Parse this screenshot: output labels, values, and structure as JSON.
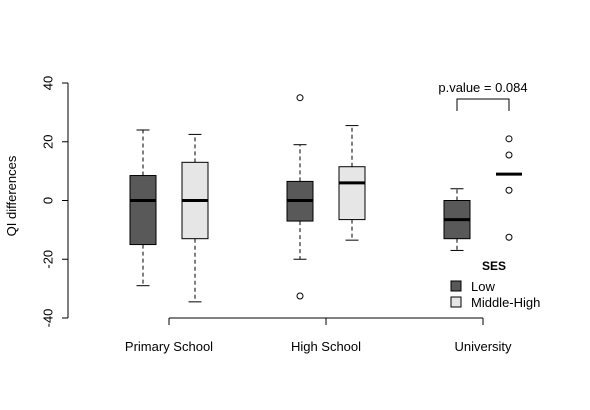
{
  "chart_data": {
    "type": "boxplot",
    "title": "",
    "xlabel": "",
    "ylabel": "QI differences",
    "ylim": [
      -40,
      40
    ],
    "yticks": [
      "-40",
      "-20",
      "0",
      "20",
      "40"
    ],
    "categories": [
      "Primary School",
      "High School",
      "University"
    ],
    "legend": {
      "title": "SES",
      "placement": "bottom-right",
      "items": [
        {
          "label": "Low",
          "color": "#595959"
        },
        {
          "label": "Middle-High",
          "color": "#e6e6e6"
        }
      ]
    },
    "annotation": {
      "text": "p.value = 0.084",
      "category": "University"
    },
    "series": [
      {
        "name": "Low",
        "color": "#595959",
        "boxes": [
          {
            "category": "Primary School",
            "whisker_low": -29,
            "q1": -15,
            "median": 0,
            "q3": 8.5,
            "whisker_high": 24,
            "outliers": []
          },
          {
            "category": "High School",
            "whisker_low": -20,
            "q1": -7,
            "median": 0,
            "q3": 6.5,
            "whisker_high": 19,
            "outliers": [
              -32.5,
              35
            ]
          },
          {
            "category": "University",
            "whisker_low": -17,
            "q1": -13,
            "median": -6.5,
            "q3": 0,
            "whisker_high": 4,
            "outliers": []
          }
        ]
      },
      {
        "name": "Middle-High",
        "color": "#e6e6e6",
        "boxes": [
          {
            "category": "Primary School",
            "whisker_low": -34.5,
            "q1": -13,
            "median": 0,
            "q3": 13,
            "whisker_high": 22.5,
            "outliers": []
          },
          {
            "category": "High School",
            "whisker_low": -13.5,
            "q1": -6.5,
            "median": 6,
            "q3": 11.5,
            "whisker_high": 25.5,
            "outliers": []
          },
          {
            "category": "University",
            "whisker_low": 9,
            "q1": 9,
            "median": 9,
            "q3": 9,
            "whisker_high": 9,
            "outliers": [
              -12.5,
              3.5,
              15.5,
              21
            ]
          }
        ]
      }
    ]
  }
}
